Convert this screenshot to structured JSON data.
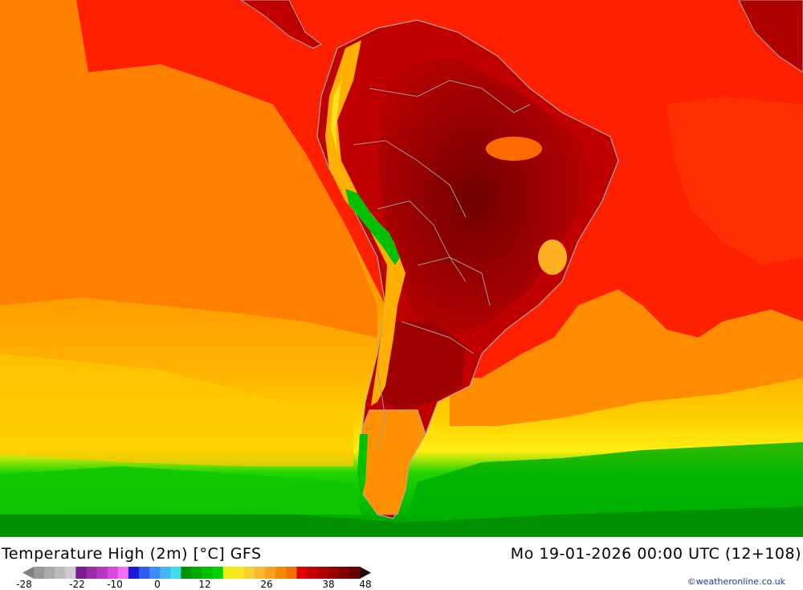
{
  "map": {
    "region": "South America",
    "ocean_west_color": "#ff8c00",
    "land_hot_color": "#b30000",
    "land_hottest_color": "#7a0000",
    "tropics_color": "#ff2000",
    "south_ocean_color": "#ffd300",
    "cold_color": "#00cc00"
  },
  "footer": {
    "title": "Temperature High (2m) [°C] GFS",
    "datetime": "Mo 19-01-2026 00:00 UTC (12+108)",
    "credit": "©weatheronline.co.uk"
  },
  "legend": {
    "colors": [
      "#999999",
      "#aaaaaa",
      "#bbbbbb",
      "#cccccc",
      "#7a1a8c",
      "#9a2aa8",
      "#b836c4",
      "#d848de",
      "#f070f0",
      "#1a1ad8",
      "#2e5cf0",
      "#3a8cf8",
      "#44b6f8",
      "#40dcf0",
      "#009600",
      "#00aa00",
      "#00bf00",
      "#00d400",
      "#eeee10",
      "#f8e820",
      "#f8d030",
      "#f8b830",
      "#f8a020",
      "#f88800",
      "#f07000",
      "#e00000",
      "#c80000",
      "#b00000",
      "#980000",
      "#800000",
      "#6a0000"
    ],
    "labels": [
      "-28",
      "-22",
      "-10",
      "0",
      "12",
      "26",
      "38",
      "48"
    ]
  }
}
